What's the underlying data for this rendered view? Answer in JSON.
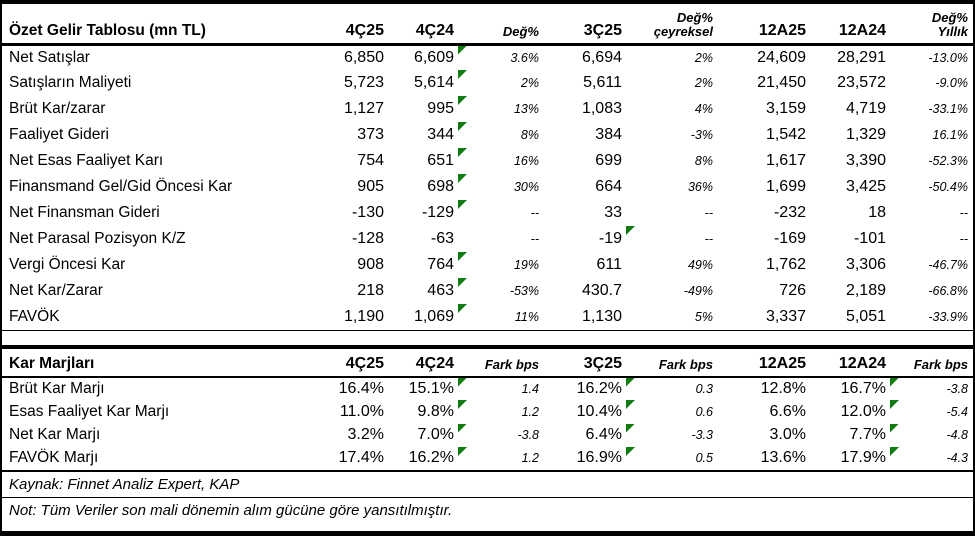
{
  "colors": {
    "background": "#ffffff",
    "border": "#000000",
    "text": "#000000",
    "flag_green": "#107C10"
  },
  "icons": {
    "flag": {
      "name": "green-corner-flag",
      "shape": "triangle-top-left",
      "color": "#107C10"
    }
  },
  "income_table": {
    "title": "Özet Gelir Tablosu (mn TL)",
    "headers": [
      {
        "text": "4Ç25",
        "pct": false
      },
      {
        "text": "4Ç24",
        "pct": false
      },
      {
        "text": "Değ%",
        "pct": true
      },
      {
        "text": "3Ç25",
        "pct": false
      },
      {
        "text": "Değ%\nçeyreksel",
        "pct": true
      },
      {
        "text": "12A25",
        "pct": false
      },
      {
        "text": "12A24",
        "pct": false
      },
      {
        "text": "Değ%\nYıllık",
        "pct": true
      }
    ],
    "pct_columns": [
      2,
      4,
      7
    ],
    "rows": [
      {
        "label": "Net Satışlar",
        "values": [
          "6,850",
          "6,609",
          "3.6%",
          "6,694",
          "2%",
          "24,609",
          "28,291",
          "-13.0%"
        ],
        "flags": [
          1
        ]
      },
      {
        "label": "Satışların Maliyeti",
        "values": [
          "5,723",
          "5,614",
          "2%",
          "5,611",
          "2%",
          "21,450",
          "23,572",
          "-9.0%"
        ],
        "flags": [
          1
        ]
      },
      {
        "label": "Brüt Kar/zarar",
        "values": [
          "1,127",
          "995",
          "13%",
          "1,083",
          "4%",
          "3,159",
          "4,719",
          "-33.1%"
        ],
        "flags": [
          1
        ]
      },
      {
        "label": "Faaliyet Gideri",
        "values": [
          "373",
          "344",
          "8%",
          "384",
          "-3%",
          "1,542",
          "1,329",
          "16.1%"
        ],
        "flags": [
          1
        ]
      },
      {
        "label": "Net Esas Faaliyet Karı",
        "values": [
          "754",
          "651",
          "16%",
          "699",
          "8%",
          "1,617",
          "3,390",
          "-52.3%"
        ],
        "flags": [
          1
        ]
      },
      {
        "label": "Finansmand Gel/Gid Öncesi Kar",
        "values": [
          "905",
          "698",
          "30%",
          "664",
          "36%",
          "1,699",
          "3,425",
          "-50.4%"
        ],
        "flags": [
          1
        ]
      },
      {
        "label": "Net Finansman Gideri",
        "values": [
          "-130",
          "-129",
          "--",
          "33",
          "--",
          "-232",
          "18",
          "--"
        ],
        "flags": [
          1
        ]
      },
      {
        "label": "Net Parasal Pozisyon K/Z",
        "values": [
          "-128",
          "-63",
          "--",
          "-19",
          "--",
          "-169",
          "-101",
          "--"
        ],
        "flags": [
          3
        ]
      },
      {
        "label": "Vergi Öncesi Kar",
        "values": [
          "908",
          "764",
          "19%",
          "611",
          "49%",
          "1,762",
          "3,306",
          "-46.7%"
        ],
        "flags": [
          1
        ]
      },
      {
        "label": "Net Kar/Zarar",
        "values": [
          "218",
          "463",
          "-53%",
          "430.7",
          "-49%",
          "726",
          "2,189",
          "-66.8%"
        ],
        "flags": [
          1
        ]
      },
      {
        "label": "FAVÖK",
        "values": [
          "1,190",
          "1,069",
          "11%",
          "1,130",
          "5%",
          "3,337",
          "5,051",
          "-33.9%"
        ],
        "flags": [
          1
        ]
      }
    ]
  },
  "margins_table": {
    "title": "Kar Marjları",
    "headers": [
      {
        "text": "4Ç25",
        "pct": false
      },
      {
        "text": "4Ç24",
        "pct": false
      },
      {
        "text": "Fark bps",
        "pct": true
      },
      {
        "text": "3Ç25",
        "pct": false
      },
      {
        "text": "Fark bps",
        "pct": true
      },
      {
        "text": "12A25",
        "pct": false
      },
      {
        "text": "12A24",
        "pct": false
      },
      {
        "text": "Fark bps",
        "pct": true
      }
    ],
    "pct_columns": [
      2,
      4,
      7
    ],
    "rows": [
      {
        "label": "Brüt Kar Marjı",
        "values": [
          "16.4%",
          "15.1%",
          "1.4",
          "16.2%",
          "0.3",
          "12.8%",
          "16.7%",
          "-3.8"
        ],
        "flags": [
          1,
          3,
          6
        ]
      },
      {
        "label": "Esas Faaliyet Kar Marjı",
        "values": [
          "11.0%",
          "9.8%",
          "1.2",
          "10.4%",
          "0.6",
          "6.6%",
          "12.0%",
          "-5.4"
        ],
        "flags": [
          1,
          3,
          6
        ]
      },
      {
        "label": "Net Kar Marjı",
        "values": [
          "3.2%",
          "7.0%",
          "-3.8",
          "6.4%",
          "-3.3",
          "3.0%",
          "7.7%",
          "-4.8"
        ],
        "flags": [
          1,
          3,
          6
        ]
      },
      {
        "label": "FAVÖK Marjı",
        "values": [
          "17.4%",
          "16.2%",
          "1.2",
          "16.9%",
          "0.5",
          "13.6%",
          "17.9%",
          "-4.3"
        ],
        "flags": [
          1,
          3,
          6
        ]
      }
    ]
  },
  "footer": {
    "source": "Kaynak: Finnet Analiz Expert, KAP",
    "note": "Not: Tüm Veriler son mali dönemin alım gücüne göre yansıtılmıştır."
  }
}
